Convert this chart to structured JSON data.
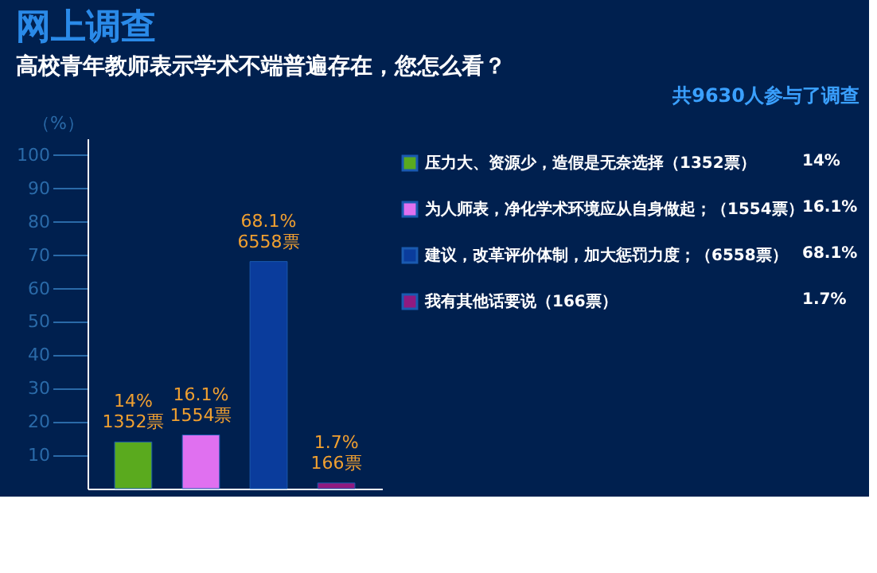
{
  "chart_data": {
    "type": "bar",
    "title": "网上调查",
    "subtitle": "高校青年教师表示学术不端普遍存在，您怎么看？",
    "ylabel": "（%）",
    "annotations": [
      "共9630人参与了调查",
      "14%",
      "16.1%",
      "68.1%",
      "1.7%"
    ],
    "categories": [
      null,
      null,
      null,
      null
    ],
    "series": [
      {
        "name": "压力大、资源少，造假是无奈选择（1352票）",
        "color": "#5aaa1e",
        "values": [
          14,
          null,
          null,
          null
        ],
        "value_labels": [
          "14%\n1352票",
          null,
          null,
          null
        ]
      },
      {
        "name": "为人师表，净化学术环境应从自身做起；（1554票）",
        "color": "#e070f0",
        "values": [
          null,
          16.1,
          null,
          null
        ],
        "value_labels": [
          null,
          "16.1%\n1554票",
          null,
          null
        ]
      },
      {
        "name": "建议，改革评价体制，加大惩罚力度；（6558票）",
        "color": "#0a3c9c",
        "values": [
          null,
          null,
          68.1,
          null
        ],
        "value_labels": [
          null,
          null,
          "68.1%\n6558票",
          null
        ]
      },
      {
        "name": "我有其他话要说（166票）",
        "color": "#901a80",
        "values": [
          null,
          null,
          null,
          1.7
        ],
        "value_labels": [
          null,
          null,
          null,
          "1.7%\n166票"
        ]
      }
    ],
    "ylim": [
      0,
      105
    ],
    "yticks": [
      10,
      20,
      30,
      40,
      50,
      60,
      70,
      80,
      90,
      100
    ],
    "grid": false,
    "legend": "right"
  }
}
